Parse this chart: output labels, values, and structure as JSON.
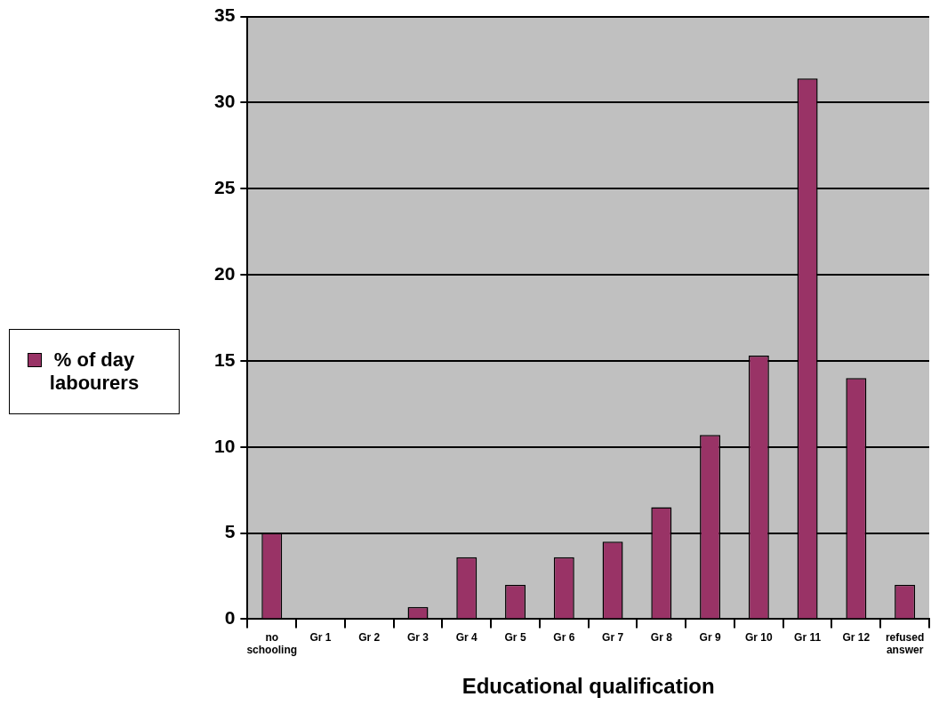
{
  "chart_data": {
    "type": "bar",
    "xlabel": "Educational qualification",
    "categories": [
      "no schooling",
      "Gr 1",
      "Gr 2",
      "Gr 3",
      "Gr 4",
      "Gr 5",
      "Gr 6",
      "Gr 7",
      "Gr 8",
      "Gr 9",
      "Gr 10",
      "Gr 11",
      "Gr 12",
      "refused answer"
    ],
    "series": [
      {
        "name": "% of day labourers",
        "color": "#993366",
        "values": [
          5.0,
          0,
          0,
          0.7,
          3.6,
          2.0,
          3.6,
          4.5,
          6.5,
          10.7,
          15.3,
          31.4,
          14.0,
          2.0
        ]
      }
    ],
    "ylim": [
      0,
      35
    ],
    "yticks": [
      0,
      5,
      10,
      15,
      20,
      25,
      30,
      35
    ],
    "grid": "y",
    "legend": "left"
  }
}
